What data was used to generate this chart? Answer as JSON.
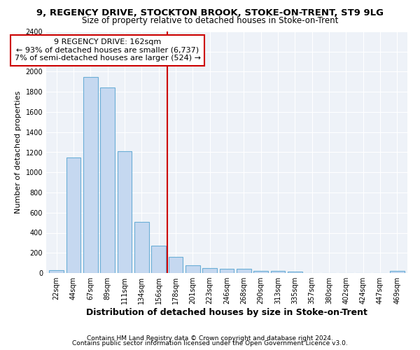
{
  "title1": "9, REGENCY DRIVE, STOCKTON BROOK, STOKE-ON-TRENT, ST9 9LG",
  "title2": "Size of property relative to detached houses in Stoke-on-Trent",
  "xlabel": "Distribution of detached houses by size in Stoke-on-Trent",
  "ylabel": "Number of detached properties",
  "categories": [
    "22sqm",
    "44sqm",
    "67sqm",
    "89sqm",
    "111sqm",
    "134sqm",
    "156sqm",
    "178sqm",
    "201sqm",
    "223sqm",
    "246sqm",
    "268sqm",
    "290sqm",
    "313sqm",
    "335sqm",
    "357sqm",
    "380sqm",
    "402sqm",
    "424sqm",
    "447sqm",
    "469sqm"
  ],
  "values": [
    30,
    1150,
    1950,
    1840,
    1210,
    510,
    270,
    160,
    80,
    50,
    45,
    40,
    20,
    20,
    15,
    0,
    0,
    0,
    0,
    0,
    20
  ],
  "bar_color": "#c5d8f0",
  "bar_edge_color": "#6baed6",
  "vline_x": 6.5,
  "vline_color": "#cc0000",
  "annotation_line1": "9 REGENCY DRIVE: 162sqm",
  "annotation_line2": "← 93% of detached houses are smaller (6,737)",
  "annotation_line3": "7% of semi-detached houses are larger (524) →",
  "annotation_box_color": "white",
  "annotation_box_edge": "#cc0000",
  "ylim": [
    0,
    2400
  ],
  "yticks": [
    0,
    200,
    400,
    600,
    800,
    1000,
    1200,
    1400,
    1600,
    1800,
    2000,
    2200,
    2400
  ],
  "footer1": "Contains HM Land Registry data © Crown copyright and database right 2024.",
  "footer2": "Contains public sector information licensed under the Open Government Licence v3.0.",
  "bg_color": "#ffffff",
  "plot_bg_color": "#eef2f8",
  "grid_color": "#ffffff",
  "title1_fontsize": 9.5,
  "title2_fontsize": 8.5,
  "xlabel_fontsize": 9,
  "ylabel_fontsize": 8,
  "tick_fontsize": 7,
  "footer_fontsize": 6.5,
  "annot_fontsize": 8
}
